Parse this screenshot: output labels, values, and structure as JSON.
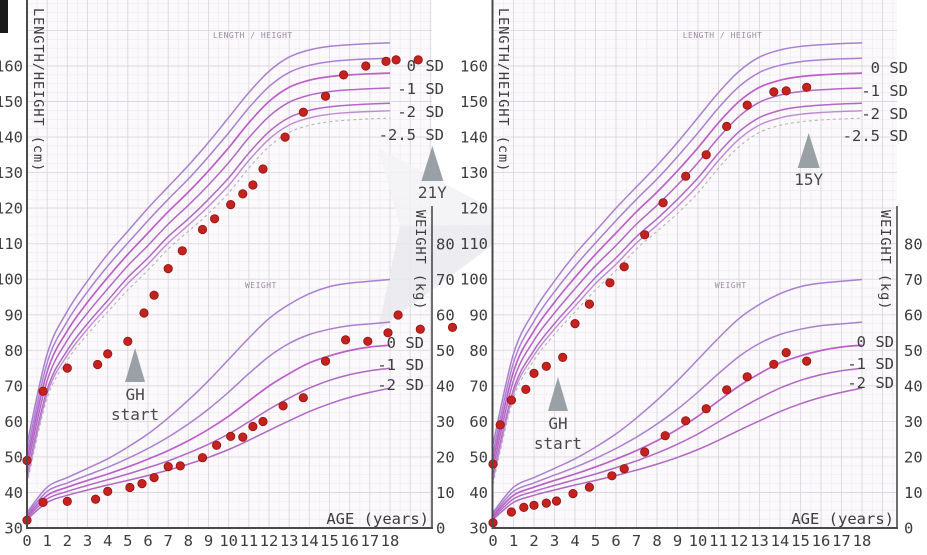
{
  "figure": {
    "kind": "growth-charts",
    "panel_count": 2
  },
  "colors": {
    "paper": "#fbf9fb",
    "grid_minor": "#efecf1",
    "grid_major": "#dcd7de",
    "axis": "#4a4a4a",
    "text": "#3c3c3c",
    "curve_plus": "#a97fd0",
    "curve_zero": "#bc5fc8",
    "curve_main": "#b168c4",
    "curve_light": "#c08ad2",
    "curve_dashed": "#b9b2bd",
    "dot_fill": "#c5221f",
    "dot_stroke": "#8e1513",
    "annotation_arrow": "#99a1a7",
    "annotation_text": "#4a4a4a",
    "curve_inline_label": "#9b8ba3",
    "watermark": "#e9e9ee"
  },
  "chart_data": {
    "type": "scatter",
    "x_label": "AGE (years)",
    "x_ticks": [
      0,
      1,
      2,
      3,
      4,
      5,
      6,
      7,
      8,
      9,
      10,
      11,
      12,
      13,
      14,
      15,
      16,
      17,
      18
    ],
    "height_axis": {
      "label": "LENGTH/HEIGHT (cm)",
      "ticks": [
        160,
        150,
        140,
        130,
        120,
        110,
        100,
        90,
        80,
        70,
        60,
        50,
        40,
        30
      ],
      "range": [
        30,
        160
      ]
    },
    "weight_axis": {
      "label": "WEIGHT (kg)",
      "ticks": [
        80,
        70,
        60,
        50,
        40,
        30,
        20,
        10,
        0
      ],
      "range": [
        0,
        80
      ]
    },
    "sd_labels_height": [
      "0 SD",
      "-1 SD",
      "-2 SD",
      "-2.5 SD"
    ],
    "sd_labels_weight": [
      "0 SD",
      "-1 SD",
      "-2 SD"
    ],
    "curve_inline_labels": {
      "height": "LENGTH / HEIGHT",
      "weight": "WEIGHT"
    },
    "reference_curves": {
      "ages": [
        0,
        1,
        2,
        3,
        4,
        5,
        6,
        7,
        8,
        9,
        10,
        11,
        12,
        13,
        14,
        15,
        16,
        17,
        18
      ],
      "height": {
        "+2": [
          53.5,
          79,
          91,
          99.5,
          107,
          113.5,
          120,
          126,
          132,
          138.5,
          145.5,
          152.5,
          158.5,
          162.5,
          164.5,
          165.5,
          166,
          166.3,
          166.5
        ],
        "+1": [
          51.2,
          76.5,
          88.2,
          96.5,
          103.7,
          110.2,
          116.5,
          122.5,
          128.2,
          134.5,
          141.2,
          148.2,
          154.2,
          158.2,
          160.2,
          161.2,
          161.7,
          162,
          162.2
        ],
        "0": [
          49,
          74,
          85.5,
          93.5,
          100.5,
          107,
          113,
          119,
          124.5,
          130.5,
          137,
          144,
          150,
          154,
          156,
          157,
          157.5,
          157.8,
          158
        ],
        "-1": [
          46.8,
          71.5,
          82.8,
          90.5,
          97.3,
          103.8,
          109.5,
          115.5,
          120.8,
          126.5,
          132.8,
          139.8,
          145.8,
          149.8,
          151.8,
          152.8,
          153.3,
          153.6,
          153.8
        ],
        "-2": [
          44.6,
          69,
          80,
          87.5,
          94,
          100.5,
          106,
          112,
          117,
          122.5,
          128.5,
          135.5,
          141.5,
          145.5,
          147.5,
          148.5,
          149,
          149.3,
          149.5
        ],
        "-2.5": [
          43.5,
          67.8,
          78.6,
          86,
          92.4,
          98.8,
          104.2,
          110.2,
          115.2,
          120.5,
          126.4,
          133.4,
          139.4,
          143.4,
          145.4,
          146.4,
          146.9,
          147.2,
          147.4
        ],
        "-3": [
          42.4,
          66.5,
          77.2,
          84.5,
          90.8,
          97,
          102.5,
          108.5,
          113.5,
          118.5,
          124.3,
          131.3,
          137.3,
          141.3,
          143.3,
          144.3,
          144.8,
          145.1,
          145.3
        ]
      },
      "weight": {
        "+2": [
          4.4,
          11.5,
          14.2,
          16.8,
          19.5,
          22.8,
          26.5,
          31,
          36,
          41.5,
          47.5,
          53.5,
          59,
          63,
          66,
          68,
          69,
          69.5,
          70
        ],
        "+1": [
          3.9,
          10.3,
          12.7,
          14.9,
          17.1,
          19.6,
          22.4,
          25.6,
          29.3,
          33.5,
          38.3,
          43.5,
          48.3,
          52,
          54.5,
          56,
          57,
          57.5,
          58
        ],
        "0": [
          3.4,
          9.2,
          11.5,
          13.4,
          15.2,
          17.2,
          19.4,
          21.8,
          24.6,
          27.8,
          31.5,
          35.8,
          40,
          43.5,
          46.5,
          48.5,
          50,
          51,
          51.5
        ],
        "-1": [
          2.9,
          8.2,
          10.3,
          12,
          13.6,
          15.2,
          17,
          18.9,
          21.1,
          23.6,
          26.5,
          29.9,
          33.4,
          36.6,
          39.4,
          41.6,
          43.2,
          44.3,
          45
        ],
        "-2": [
          2.4,
          7.2,
          9.2,
          10.7,
          12.1,
          13.4,
          14.8,
          16.3,
          18,
          19.9,
          22.1,
          24.7,
          27.5,
          30.2,
          32.8,
          35,
          36.8,
          38.2,
          39.4
        ]
      }
    },
    "panels": [
      {
        "name": "left",
        "gh_start_label_line1": "GH",
        "gh_start_label_line2": "start",
        "gh_start_age": 5.36,
        "end_marker_label": "21Y",
        "end_marker_age": 20.1,
        "height_points": [
          [
            0,
            49
          ],
          [
            0.8,
            68.5
          ],
          [
            2,
            75
          ],
          [
            3.5,
            76
          ],
          [
            4,
            79
          ],
          [
            5,
            82.5
          ],
          [
            5.8,
            90.5
          ],
          [
            6.3,
            95.5
          ],
          [
            7,
            103
          ],
          [
            7.7,
            108
          ],
          [
            8.7,
            114
          ],
          [
            9.3,
            117
          ],
          [
            10.1,
            121
          ],
          [
            10.7,
            124
          ],
          [
            11.2,
            126.5
          ],
          [
            11.7,
            131
          ],
          [
            12.8,
            140
          ],
          [
            13.7,
            147
          ],
          [
            14.8,
            151.5
          ],
          [
            15.7,
            157.5
          ],
          [
            16.8,
            160
          ],
          [
            17.8,
            161.3
          ],
          [
            18.3,
            161.7
          ],
          [
            19.4,
            161.7
          ]
        ],
        "weight_points": [
          [
            0,
            2.2
          ],
          [
            0.8,
            7.2
          ],
          [
            2,
            7.5
          ],
          [
            3.4,
            8.1
          ],
          [
            4,
            10.3
          ],
          [
            5.1,
            11.4
          ],
          [
            5.7,
            12.5
          ],
          [
            6.3,
            14.2
          ],
          [
            7,
            17.3
          ],
          [
            7.6,
            17.5
          ],
          [
            8.7,
            19.8
          ],
          [
            9.4,
            23.3
          ],
          [
            10.1,
            25.8
          ],
          [
            10.7,
            25.6
          ],
          [
            11.2,
            28.6
          ],
          [
            11.7,
            30
          ],
          [
            12.7,
            34.4
          ],
          [
            13.7,
            36.7
          ],
          [
            14.8,
            47
          ],
          [
            15.8,
            53
          ],
          [
            16.9,
            52.6
          ],
          [
            17.9,
            55
          ],
          [
            18.4,
            60
          ],
          [
            19.5,
            56
          ],
          [
            21.1,
            56.5
          ]
        ]
      },
      {
        "name": "right",
        "gh_start_label_line1": "GH",
        "gh_start_label_line2": "start",
        "gh_start_age": 3.17,
        "end_marker_label": "15Y",
        "end_marker_age": 15.4,
        "height_points": [
          [
            0,
            48
          ],
          [
            0.35,
            59
          ],
          [
            0.9,
            66
          ],
          [
            1.6,
            69
          ],
          [
            2,
            73.5
          ],
          [
            2.6,
            75.5
          ],
          [
            3.4,
            78
          ],
          [
            4,
            87.5
          ],
          [
            4.7,
            93
          ],
          [
            5.7,
            99
          ],
          [
            6.4,
            103.5
          ],
          [
            7.4,
            112.5
          ],
          [
            8.3,
            121.5
          ],
          [
            9.4,
            129
          ],
          [
            10.4,
            135
          ],
          [
            11.4,
            143
          ],
          [
            12.4,
            149
          ],
          [
            13.7,
            152.7
          ],
          [
            14.3,
            153
          ],
          [
            15.3,
            154
          ]
        ],
        "weight_points": [
          [
            0,
            1.5
          ],
          [
            0.9,
            4.5
          ],
          [
            1.5,
            5.8
          ],
          [
            2,
            6.4
          ],
          [
            2.6,
            7
          ],
          [
            3.1,
            7.6
          ],
          [
            3.9,
            9.7
          ],
          [
            4.7,
            11.5
          ],
          [
            5.8,
            14.7
          ],
          [
            6.4,
            16.7
          ],
          [
            7.4,
            21.4
          ],
          [
            8.4,
            26
          ],
          [
            9.4,
            30.2
          ],
          [
            10.4,
            33.6
          ],
          [
            11.4,
            38.9
          ],
          [
            12.4,
            42.6
          ],
          [
            13.7,
            46.1
          ],
          [
            14.3,
            49.4
          ],
          [
            15.3,
            47
          ]
        ]
      }
    ]
  }
}
